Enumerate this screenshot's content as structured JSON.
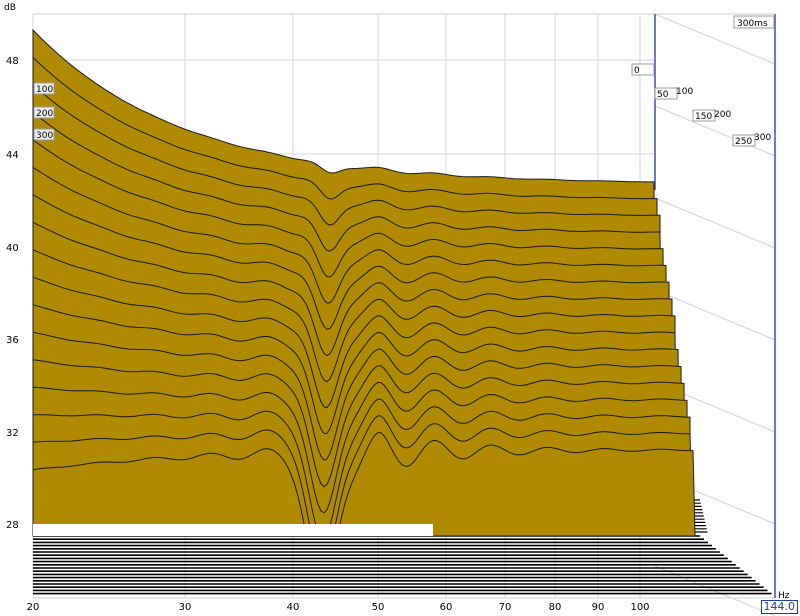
{
  "chart_data": {
    "type": "waterfall",
    "y_unit": "dB",
    "x_unit": "Hz",
    "time_unit_label": "300ms",
    "y_ticks": [
      "48",
      "44",
      "40",
      "36",
      "32",
      "28"
    ],
    "x_ticks": [
      "20",
      "30",
      "40",
      "50",
      "60",
      "70",
      "80",
      "90",
      "100"
    ],
    "time_ticks_front": [
      "100",
      "200",
      "300"
    ],
    "time_ticks_right_a": [
      "0",
      "50",
      "150",
      "250"
    ],
    "time_ticks_right_b": [
      "100",
      "200",
      "300"
    ],
    "cursor_readout": "144.0",
    "fill_color": "#b08a00",
    "edge_color": "#1a1a1a",
    "slices": 17
  }
}
